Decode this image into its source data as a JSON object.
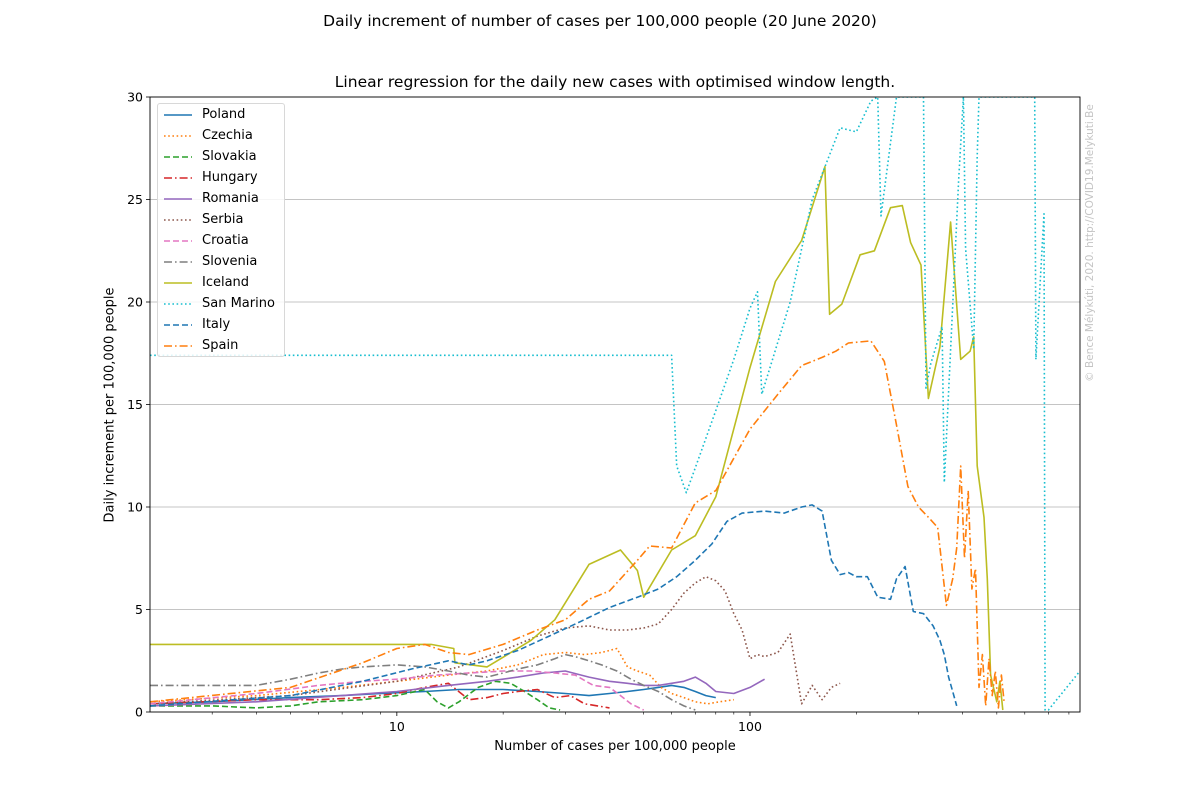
{
  "page": {
    "suptitle": "Daily increment of number of cases per 100,000 people (20 June 2020)",
    "copyright": "© Bence Mélykúti, 2020. http://COVID19.Melykuti.Be"
  },
  "chart_data": {
    "type": "line",
    "title": "Linear regression for the daily new cases with optimised window length.",
    "xlabel": "Number of cases per 100,000 people",
    "ylabel": "Daily increment per 100,000 people",
    "xscale": "log",
    "xlim": [
      2,
      860
    ],
    "ylim": [
      0,
      30
    ],
    "xticks": [
      10,
      100
    ],
    "xtick_labels": [
      "10",
      "100"
    ],
    "yticks": [
      0,
      5,
      10,
      15,
      20,
      25,
      30
    ],
    "ytick_labels": [
      "0",
      "5",
      "10",
      "15",
      "20",
      "25",
      "30"
    ],
    "grid": "y-major",
    "legend_position": "top-left",
    "series": [
      {
        "name": "Poland",
        "color": "#1f77b4",
        "dash": "solid",
        "x": [
          2,
          3,
          5,
          7,
          9,
          12,
          15,
          20,
          25,
          30,
          35,
          40,
          45,
          50,
          55,
          60,
          65,
          70,
          75,
          80
        ],
        "y": [
          0.4,
          0.5,
          0.7,
          0.8,
          0.9,
          1.0,
          1.1,
          1.1,
          1.0,
          0.9,
          0.8,
          0.9,
          1.0,
          1.1,
          1.2,
          1.3,
          1.2,
          1.0,
          0.8,
          0.7
        ]
      },
      {
        "name": "Czechia",
        "color": "#ff7f0e",
        "dash": "dotted",
        "x": [
          2,
          4,
          7,
          10,
          14,
          18,
          22,
          26,
          30,
          34,
          38,
          42,
          45,
          48,
          52,
          56,
          60,
          65,
          70,
          76,
          82,
          90
        ],
        "y": [
          0.5,
          0.8,
          1.2,
          1.5,
          1.8,
          2.0,
          2.3,
          2.8,
          2.9,
          2.8,
          2.9,
          3.1,
          2.2,
          2.0,
          1.8,
          1.2,
          0.9,
          0.7,
          0.5,
          0.4,
          0.5,
          0.6
        ]
      },
      {
        "name": "Slovakia",
        "color": "#2ca02c",
        "dash": "dashed",
        "x": [
          2,
          3,
          4,
          5,
          6,
          8,
          10,
          12,
          13,
          14,
          15,
          17,
          19,
          21,
          23,
          25,
          27,
          29
        ],
        "y": [
          0.3,
          0.3,
          0.2,
          0.3,
          0.5,
          0.6,
          0.8,
          1.1,
          0.5,
          0.2,
          0.5,
          1.2,
          1.5,
          1.4,
          1.0,
          0.6,
          0.2,
          0.1
        ]
      },
      {
        "name": "Hungary",
        "color": "#d62728",
        "dash": "dashdot",
        "x": [
          2,
          4,
          6,
          8,
          10,
          12,
          14,
          16,
          18,
          20,
          22,
          25,
          28,
          31,
          34,
          37,
          40
        ],
        "y": [
          0.4,
          0.6,
          0.6,
          0.7,
          0.9,
          1.2,
          1.4,
          0.6,
          0.7,
          0.9,
          1.0,
          1.1,
          0.7,
          0.8,
          0.4,
          0.3,
          0.2
        ]
      },
      {
        "name": "Romania",
        "color": "#9467bd",
        "dash": "solid",
        "x": [
          2,
          4,
          7,
          10,
          14,
          18,
          22,
          26,
          30,
          35,
          40,
          45,
          50,
          55,
          60,
          65,
          70,
          75,
          80,
          90,
          100,
          110
        ],
        "y": [
          0.3,
          0.5,
          0.8,
          1.0,
          1.3,
          1.5,
          1.7,
          1.9,
          2.0,
          1.7,
          1.5,
          1.4,
          1.3,
          1.3,
          1.4,
          1.5,
          1.7,
          1.4,
          1.0,
          0.9,
          1.2,
          1.6
        ]
      },
      {
        "name": "Serbia",
        "color": "#8c564b",
        "dash": "dotted",
        "x": [
          2,
          5,
          10,
          15,
          20,
          25,
          30,
          35,
          40,
          45,
          50,
          55,
          60,
          65,
          70,
          75,
          80,
          85,
          90,
          95,
          100,
          105,
          110,
          120,
          130,
          140,
          150,
          160,
          170,
          180
        ],
        "y": [
          0.4,
          0.8,
          1.5,
          2.2,
          3.0,
          3.7,
          4.1,
          4.2,
          4.0,
          4.0,
          4.1,
          4.3,
          5.0,
          5.8,
          6.3,
          6.6,
          6.4,
          5.9,
          4.8,
          4.0,
          2.6,
          2.8,
          2.7,
          2.9,
          3.8,
          0.4,
          1.3,
          0.6,
          1.2,
          1.4
        ]
      },
      {
        "name": "Croatia",
        "color": "#e377c2",
        "dash": "dashed",
        "x": [
          2,
          4,
          6,
          8,
          10,
          13,
          16,
          20,
          24,
          28,
          32,
          36,
          40,
          43,
          46,
          50
        ],
        "y": [
          0.4,
          0.9,
          1.3,
          1.5,
          1.6,
          1.8,
          1.9,
          2.0,
          2.0,
          1.9,
          1.8,
          1.3,
          1.2,
          0.8,
          0.4,
          0.1
        ]
      },
      {
        "name": "Slovenia",
        "color": "#7f7f7f",
        "dash": "dashdot",
        "x": [
          2,
          4,
          5,
          6,
          7,
          8,
          10,
          12,
          14,
          16,
          18,
          20,
          22,
          25,
          28,
          30,
          32,
          35,
          38,
          42,
          46,
          50,
          55,
          60,
          65,
          70
        ],
        "y": [
          1.3,
          1.3,
          1.6,
          1.9,
          2.1,
          2.2,
          2.3,
          2.2,
          2.0,
          1.8,
          1.7,
          1.9,
          2.1,
          2.3,
          2.6,
          2.8,
          2.7,
          2.5,
          2.3,
          2.0,
          1.6,
          1.3,
          1.0,
          0.6,
          0.3,
          0.1
        ]
      },
      {
        "name": "Iceland",
        "color": "#bcbd22",
        "dash": "solid",
        "x": [
          2,
          12.5,
          14.5,
          14.6,
          18,
          24,
          28,
          35,
          43,
          48,
          50,
          60,
          70,
          80,
          100,
          118,
          140,
          163,
          168,
          182,
          205,
          225,
          250,
          270,
          285,
          305,
          320,
          345,
          370,
          395,
          420,
          430,
          440,
          460,
          470,
          480,
          500,
          510,
          520
        ],
        "y": [
          3.3,
          3.3,
          3.1,
          2.4,
          2.2,
          3.5,
          4.5,
          7.2,
          7.9,
          6.9,
          5.6,
          7.9,
          8.6,
          10.5,
          16.8,
          21.0,
          23.0,
          26.6,
          19.4,
          19.9,
          22.3,
          22.5,
          24.6,
          24.7,
          22.9,
          21.8,
          15.3,
          17.8,
          23.9,
          17.2,
          17.6,
          18.3,
          12.0,
          9.5,
          6.5,
          1.8,
          0.5,
          1.5,
          0.1
        ]
      },
      {
        "name": "San Marino",
        "color": "#17becf",
        "dash": "dotted",
        "x": [
          2,
          60,
          62,
          66,
          72,
          80,
          90,
          100,
          105,
          108,
          130,
          150,
          180,
          200,
          220,
          230,
          235,
          260,
          310,
          315,
          325,
          350,
          355,
          390,
          402,
          408,
          430,
          440,
          445,
          640,
          645,
          680,
          685,
          700,
          860
        ],
        "y": [
          17.4,
          17.4,
          12.0,
          10.7,
          12.5,
          14.7,
          17.2,
          19.7,
          20.5,
          15.5,
          20.0,
          25.0,
          28.5,
          28.3,
          29.8,
          30.0,
          24.2,
          30.0,
          30.0,
          15.8,
          17.0,
          18.8,
          11.2,
          26.0,
          30.0,
          22.6,
          17.7,
          27.1,
          30.0,
          30.0,
          17.2,
          24.3,
          0.1,
          0.1,
          2.0
        ]
      },
      {
        "name": "Italy",
        "color": "#1f77b4",
        "dash": "dashed",
        "x": [
          2,
          5,
          8,
          11,
          14,
          16,
          18,
          22,
          27,
          33,
          40,
          48,
          55,
          62,
          70,
          78,
          86,
          95,
          110,
          125,
          140,
          150,
          160,
          170,
          180,
          190,
          200,
          215,
          230,
          250,
          260,
          275,
          290,
          310,
          330,
          345,
          355,
          365,
          375,
          385
        ],
        "y": [
          0.3,
          0.8,
          1.5,
          2.1,
          2.5,
          2.3,
          2.5,
          3.0,
          3.7,
          4.4,
          5.1,
          5.6,
          6.0,
          6.6,
          7.4,
          8.2,
          9.3,
          9.7,
          9.8,
          9.7,
          10.0,
          10.1,
          9.8,
          7.4,
          6.7,
          6.8,
          6.6,
          6.6,
          5.6,
          5.5,
          6.5,
          7.1,
          4.9,
          4.8,
          4.2,
          3.5,
          2.8,
          1.7,
          1.0,
          0.3
        ]
      },
      {
        "name": "Spain",
        "color": "#ff7f0e",
        "dash": "dashdot",
        "x": [
          2,
          5,
          8,
          10,
          12,
          14,
          16,
          20,
          25,
          30,
          35,
          40,
          48,
          52,
          60,
          70,
          80,
          100,
          120,
          140,
          160,
          175,
          190,
          220,
          240,
          260,
          280,
          300,
          320,
          340,
          360,
          375,
          385,
          395,
          405,
          415,
          425,
          435,
          445,
          455,
          465,
          475,
          485,
          495,
          505,
          515,
          525
        ],
        "y": [
          0.5,
          1.2,
          2.4,
          3.1,
          3.3,
          2.9,
          2.8,
          3.3,
          4.0,
          4.5,
          5.5,
          5.9,
          7.4,
          8.1,
          8.0,
          10.2,
          10.8,
          13.8,
          15.5,
          16.9,
          17.3,
          17.6,
          18.0,
          18.1,
          17.1,
          14.0,
          11.0,
          10.0,
          9.5,
          9.0,
          5.2,
          6.5,
          8.0,
          12.0,
          7.5,
          10.8,
          6.0,
          7.0,
          1.2,
          2.8,
          0.3,
          2.6,
          0.8,
          2.0,
          0.2,
          1.8,
          0.4
        ]
      }
    ]
  }
}
